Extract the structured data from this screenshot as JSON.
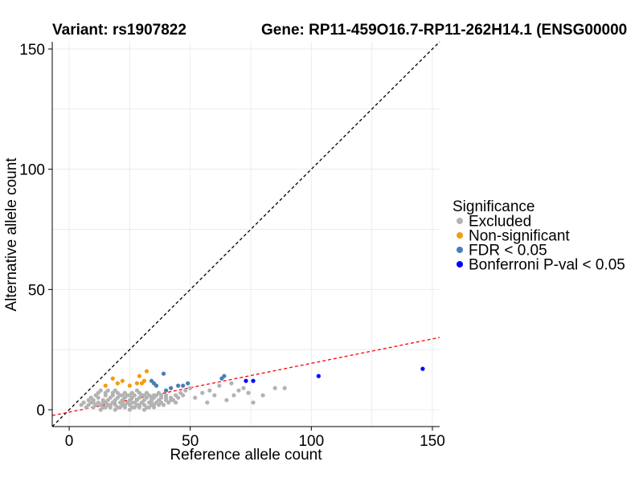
{
  "chart_data": {
    "type": "scatter",
    "title_variant": "Variant: rs1907822",
    "title_gene": "Gene: RP11-459O16.7-RP11-262H14.1 (ENSG00000",
    "xlabel": "Reference allele count",
    "ylabel": "Alternative allele count",
    "xlim": [
      -7,
      153
    ],
    "ylim": [
      -7,
      153
    ],
    "x_ticks": [
      0,
      50,
      100,
      150
    ],
    "y_ticks": [
      0,
      50,
      100,
      150
    ],
    "grid": true,
    "legend": {
      "title": "Significance",
      "position": "right",
      "entries": [
        {
          "label": "Excluded",
          "color": "#b3b3b3"
        },
        {
          "label": "Non-significant",
          "color": "#f39c12"
        },
        {
          "label": "FDR < 0.05",
          "color": "#4a7fb5"
        },
        {
          "label": "Bonferroni P-val < 0.05",
          "color": "#0000ff"
        }
      ]
    },
    "reference_lines": [
      {
        "name": "identity",
        "slope": 1,
        "intercept": 0,
        "color": "#000000",
        "style": "dashed"
      },
      {
        "name": "ratio",
        "slope": 0.203,
        "intercept": -1,
        "color": "#ff0000",
        "style": "dashed"
      }
    ],
    "series": [
      {
        "name": "Excluded",
        "color": "#b3b3b3",
        "x": [
          5,
          6,
          7,
          8,
          9,
          10,
          10,
          11,
          12,
          12,
          13,
          14,
          14,
          15,
          15,
          16,
          16,
          17,
          17,
          18,
          18,
          19,
          19,
          20,
          20,
          21,
          21,
          22,
          22,
          23,
          23,
          24,
          24,
          25,
          25,
          26,
          26,
          27,
          27,
          28,
          28,
          29,
          29,
          30,
          30,
          31,
          31,
          32,
          32,
          33,
          33,
          34,
          34,
          35,
          35,
          36,
          36,
          37,
          37,
          38,
          38,
          39,
          40,
          40,
          41,
          42,
          43,
          44,
          45,
          46,
          47,
          48,
          8,
          9,
          11,
          12,
          13,
          15,
          16,
          18,
          19,
          20,
          22,
          23,
          25,
          26,
          28,
          29,
          31,
          32,
          34,
          35,
          37,
          38,
          40,
          42,
          44,
          13,
          15,
          17,
          19,
          21,
          23,
          25,
          27,
          29,
          31,
          33,
          35,
          10,
          14,
          18,
          22,
          26,
          30,
          34,
          38,
          50,
          52,
          55,
          57,
          58,
          60,
          62,
          65,
          67,
          68,
          70,
          72,
          74,
          76,
          80,
          85,
          89
        ],
        "y": [
          2,
          3,
          1,
          2,
          3,
          1,
          4,
          2,
          3,
          5,
          2,
          4,
          1,
          3,
          6,
          2,
          4,
          5,
          1,
          3,
          6,
          2,
          4,
          1,
          5,
          3,
          6,
          2,
          4,
          5,
          1,
          3,
          6,
          2,
          4,
          1,
          5,
          3,
          6,
          2,
          4,
          5,
          1,
          3,
          6,
          2,
          4,
          5,
          1,
          3,
          6,
          2,
          4,
          5,
          1,
          3,
          6,
          2,
          4,
          5,
          3,
          2,
          4,
          6,
          3,
          5,
          4,
          6,
          5,
          7,
          6,
          8,
          4,
          5,
          6,
          7,
          8,
          7,
          8,
          7,
          8,
          7,
          6,
          7,
          6,
          7,
          8,
          7,
          6,
          7,
          5,
          6,
          7,
          6,
          5,
          4,
          3,
          0,
          1,
          2,
          0,
          1,
          2,
          0,
          1,
          2,
          0,
          1,
          2,
          3,
          3,
          3,
          3,
          3,
          3,
          3,
          3,
          9,
          5,
          7,
          3,
          8,
          6,
          10,
          4,
          11,
          6,
          8,
          9,
          7,
          3,
          6,
          9,
          9
        ]
      },
      {
        "name": "Non-significant",
        "color": "#f39c12",
        "x": [
          15,
          18,
          20,
          22,
          25,
          28,
          29,
          30,
          31,
          32
        ],
        "y": [
          10,
          13,
          11,
          12,
          10,
          11,
          14,
          11,
          12,
          16
        ]
      },
      {
        "name": "FDR < 0.05",
        "color": "#4a7fb5",
        "x": [
          34,
          35,
          36,
          39,
          40,
          42,
          45,
          47,
          49,
          63,
          64
        ],
        "y": [
          12,
          11,
          10,
          15,
          8,
          9,
          10,
          10,
          11,
          13,
          14
        ]
      },
      {
        "name": "Bonferroni P-val < 0.05",
        "color": "#0000ff",
        "x": [
          73,
          76,
          103,
          146
        ],
        "y": [
          12,
          12,
          14,
          17
        ]
      }
    ]
  }
}
